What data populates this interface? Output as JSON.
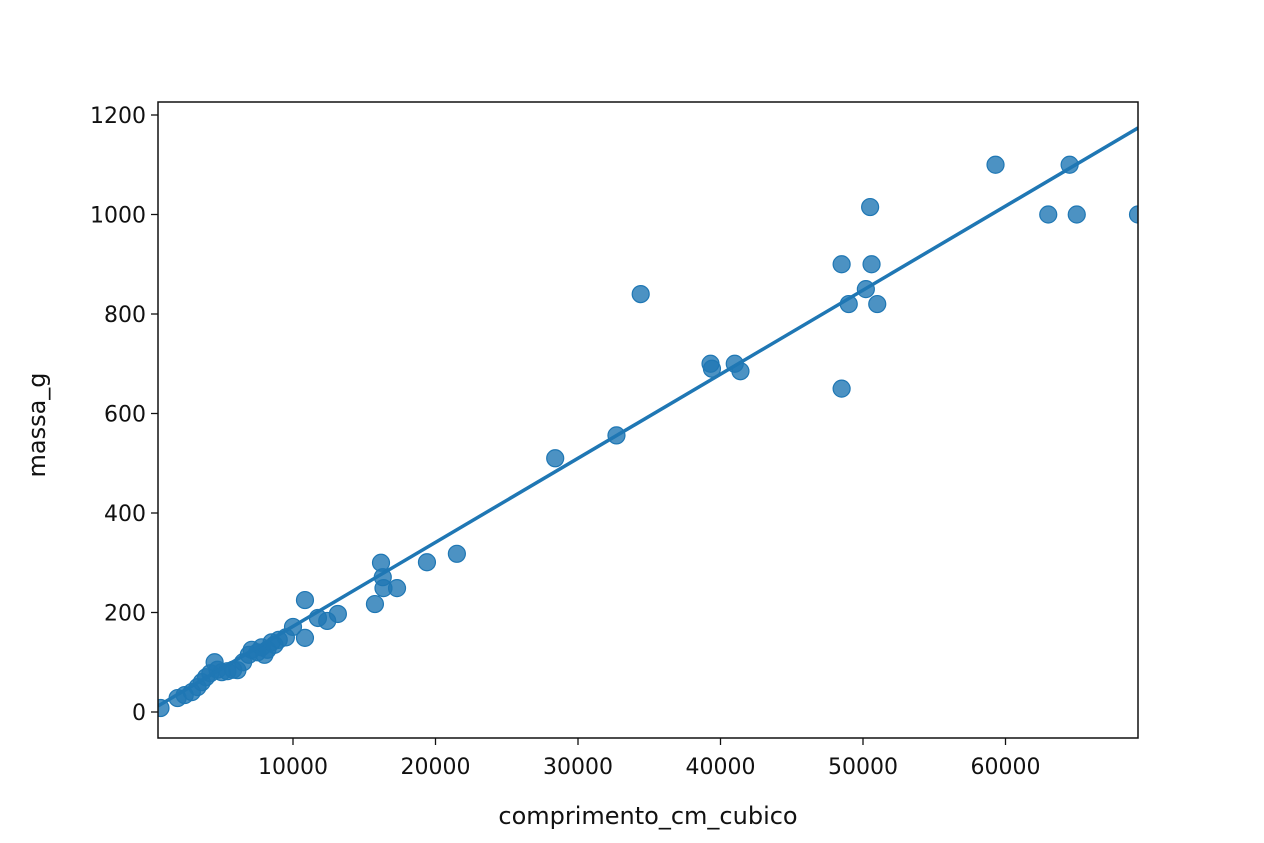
{
  "chart_data": {
    "type": "scatter",
    "title": "",
    "xlabel": "comprimento_cm_cubico",
    "ylabel": "massa_g",
    "xlim": [
      526,
      69300
    ],
    "ylim": [
      -50,
      1230
    ],
    "xticks": [
      10000,
      20000,
      30000,
      40000,
      50000,
      60000
    ],
    "yticks": [
      0,
      200,
      400,
      600,
      800,
      1000,
      1200
    ],
    "grid": false,
    "legend": null,
    "colors": {
      "marker": "#1f77b4",
      "line": "#1f77b4",
      "axes": "#111111"
    },
    "regression_line": {
      "x": [
        526,
        69300
      ],
      "y": [
        12,
        1174
      ]
    },
    "series": [
      {
        "name": "massa_g vs comprimento_cm_cubico",
        "points": [
          [
            700,
            8
          ],
          [
            1900,
            28
          ],
          [
            2400,
            34
          ],
          [
            2900,
            40
          ],
          [
            3300,
            50
          ],
          [
            3600,
            60
          ],
          [
            3900,
            70
          ],
          [
            4200,
            78
          ],
          [
            4500,
            100
          ],
          [
            4700,
            85
          ],
          [
            5000,
            80
          ],
          [
            5400,
            82
          ],
          [
            5800,
            85
          ],
          [
            6100,
            84
          ],
          [
            6500,
            100
          ],
          [
            6900,
            115
          ],
          [
            7100,
            125
          ],
          [
            7500,
            120
          ],
          [
            7800,
            130
          ],
          [
            8000,
            115
          ],
          [
            8200,
            125
          ],
          [
            8500,
            140
          ],
          [
            8700,
            135
          ],
          [
            9000,
            145
          ],
          [
            9500,
            150
          ],
          [
            10000,
            171
          ],
          [
            10840,
            225
          ],
          [
            10840,
            149
          ],
          [
            11750,
            189
          ],
          [
            12400,
            183
          ],
          [
            13150,
            197
          ],
          [
            15750,
            217
          ],
          [
            16175,
            300
          ],
          [
            16300,
            271
          ],
          [
            16350,
            249
          ],
          [
            17300,
            249
          ],
          [
            19400,
            301
          ],
          [
            21500,
            318
          ],
          [
            28400,
            510
          ],
          [
            32700,
            556
          ],
          [
            34400,
            840
          ],
          [
            39300,
            700
          ],
          [
            39400,
            690
          ],
          [
            41000,
            700
          ],
          [
            41400,
            685
          ],
          [
            48500,
            900
          ],
          [
            48500,
            650
          ],
          [
            49000,
            820
          ],
          [
            50200,
            850
          ],
          [
            50500,
            1015
          ],
          [
            50600,
            900
          ],
          [
            51000,
            820
          ],
          [
            59300,
            1100
          ],
          [
            63000,
            1000
          ],
          [
            64500,
            1100
          ],
          [
            65000,
            1000
          ],
          [
            69300,
            1000
          ]
        ]
      }
    ]
  }
}
